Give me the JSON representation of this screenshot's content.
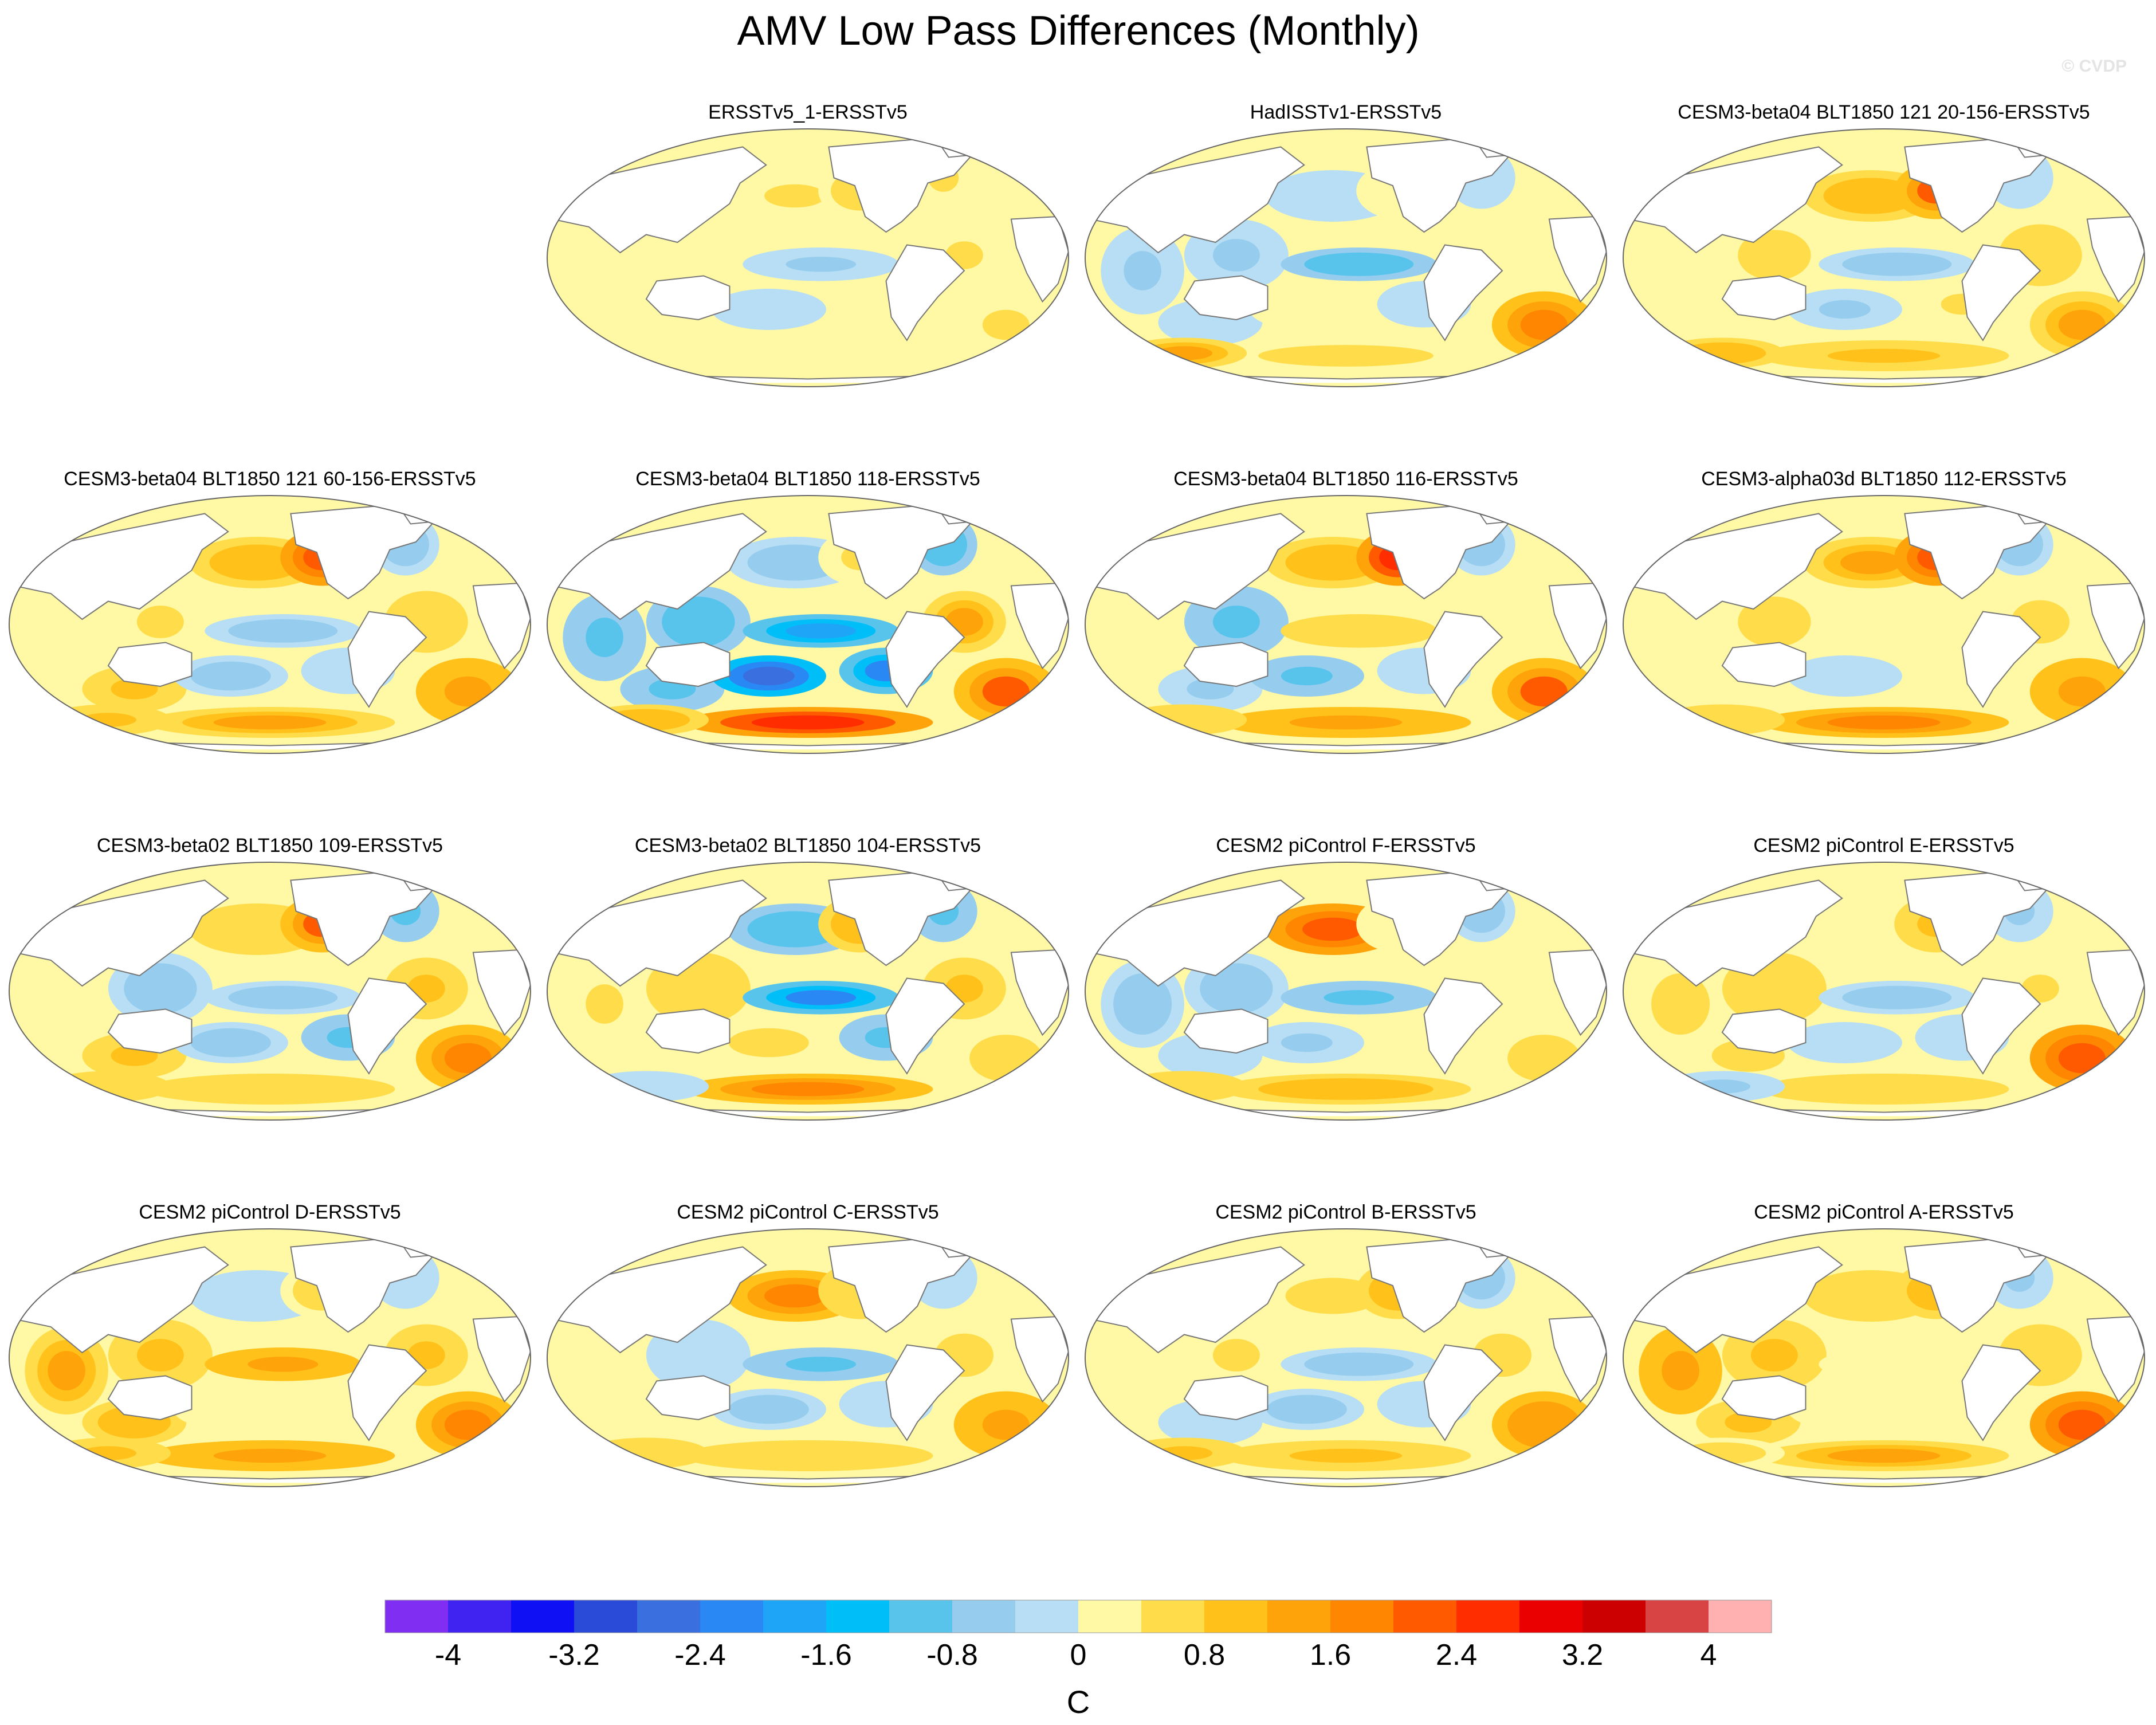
{
  "chart_data": {
    "type": "heatmap",
    "title": "AMV Low Pass Differences (Monthly)",
    "watermark": "© CVDP",
    "colorbar": {
      "label": "C",
      "tick_labels": [
        "-4",
        "-3.2",
        "-2.4",
        "-1.6",
        "-0.8",
        "0",
        "0.8",
        "1.6",
        "2.4",
        "3.2",
        "4"
      ],
      "levels": [
        -4,
        -3.6,
        -3.2,
        -2.8,
        -2.4,
        -2.0,
        -1.6,
        -1.2,
        -0.8,
        -0.4,
        0,
        0.4,
        0.8,
        1.2,
        1.6,
        2.0,
        2.4,
        2.8,
        3.2,
        3.6,
        4
      ],
      "colors": [
        "#7f2ef2",
        "#4023f0",
        "#1010f5",
        "#2a4ad8",
        "#3a6fe0",
        "#2a88f4",
        "#1fa5f8",
        "#00bff8",
        "#58c4ec",
        "#96cdee",
        "#b7def4",
        "#fff8a5",
        "#ffdd4a",
        "#ffc11a",
        "#ffa30a",
        "#ff8600",
        "#ff5a00",
        "#ff2d00",
        "#ea0000",
        "#cc0000",
        "#d84444",
        "#ffb0b0"
      ]
    },
    "panels": [
      {
        "title": "ERSSTv5_1-ERSSTv5",
        "pattern": [
          0.45,
          0.25,
          0.35,
          0.65,
          -0.45,
          0.5,
          0.4,
          0.55,
          0.2,
          0.45,
          0.1,
          -0.05,
          0.25
        ]
      },
      {
        "title": "HadISSTv1-ERSSTv5",
        "pattern": [
          -0.25,
          -0.55,
          -0.5,
          0.3,
          -1.2,
          0.4,
          0.6,
          1.8,
          -0.2,
          -0.3,
          -0.15,
          0.3,
          1.5
        ]
      },
      {
        "title": "CESM3-beta04 BLT1850 121 20-156-ERSSTv5",
        "pattern": [
          1.3,
          0.7,
          0.2,
          2.2,
          -0.6,
          0.8,
          0.9,
          1.4,
          0.5,
          -0.4,
          0.1,
          -0.5,
          1.2
        ]
      },
      {
        "title": "CESM3-beta04 BLT1850 121 60-156-ERSSTv5",
        "pattern": [
          1.3,
          0.5,
          0.4,
          2.5,
          -0.7,
          0.8,
          1.4,
          1.6,
          -0.3,
          -0.6,
          0.9,
          -0.6,
          0.9
        ]
      },
      {
        "title": "CESM3-beta04 BLT1850 118-ERSSTv5",
        "pattern": [
          -0.8,
          -1.2,
          -1.0,
          0.5,
          -1.8,
          1.5,
          2.8,
          2.2,
          -2.2,
          -1.2,
          -0.9,
          -2.8,
          1.2
        ]
      },
      {
        "title": "CESM3-beta04 BLT1850 116-ERSSTv5",
        "pattern": [
          1.2,
          -1.0,
          0.4,
          2.8,
          0.8,
          0.3,
          1.6,
          2.2,
          -0.3,
          -0.7,
          -0.5,
          -0.9,
          0.8
        ]
      },
      {
        "title": "CESM3-alpha03d BLT1850 112-ERSSTv5",
        "pattern": [
          1.4,
          0.6,
          0.3,
          2.6,
          0.3,
          0.6,
          2.0,
          1.6,
          0.4,
          -0.8,
          0.3,
          -0.4,
          0.8
        ]
      },
      {
        "title": "CESM3-beta02 BLT1850 109-ERSSTv5",
        "pattern": [
          0.8,
          -0.6,
          0.3,
          2.2,
          -0.8,
          0.9,
          0.8,
          2.0,
          -0.9,
          -1.0,
          0.9,
          -0.8,
          0.8
        ]
      },
      {
        "title": "CESM3-beta02 BLT1850 104-ERSSTv5",
        "pattern": [
          -1.2,
          0.8,
          0.5,
          1.2,
          -2.2,
          1.0,
          2.0,
          0.6,
          -1.0,
          -1.0,
          0.4,
          0.6,
          -0.4
        ]
      },
      {
        "title": "CESM2 piControl F-ERSSTv5",
        "pattern": [
          2.6,
          -0.8,
          -0.6,
          0.4,
          -0.9,
          0.3,
          1.2,
          0.7,
          0.3,
          -0.6,
          -0.2,
          -0.5,
          0.8
        ]
      },
      {
        "title": "CESM2 piControl E-ERSSTv5",
        "pattern": [
          0.4,
          0.8,
          0.7,
          1.0,
          -0.7,
          0.5,
          0.8,
          2.4,
          -0.3,
          -0.5,
          0.6,
          -0.3,
          -0.5
        ]
      },
      {
        "title": "CESM2 piControl D-ERSSTv5",
        "pattern": [
          -0.4,
          1.0,
          1.4,
          0.6,
          1.6,
          1.0,
          1.6,
          2.0,
          0.2,
          -0.4,
          1.2,
          0.2,
          1.0
        ]
      },
      {
        "title": "CESM2 piControl C-ERSSTv5",
        "pattern": [
          2.1,
          -0.3,
          0.3,
          0.8,
          -0.9,
          0.6,
          0.8,
          1.6,
          -0.2,
          -0.4,
          0.2,
          -0.6,
          0.8
        ]
      },
      {
        "title": "CESM2 piControl B-ERSSTv5",
        "pattern": [
          0.7,
          0.5,
          0.3,
          1.2,
          -0.8,
          0.7,
          0.9,
          1.7,
          -0.3,
          -0.6,
          -0.3,
          -0.8,
          0.9
        ]
      },
      {
        "title": "CESM2 piControl A-ERSSTv5",
        "pattern": [
          0.8,
          0.9,
          1.6,
          1.2,
          0.4,
          0.8,
          1.4,
          2.4,
          0.2,
          -0.5,
          0.9,
          0.3,
          0.6
        ]
      }
    ],
    "pattern_regions": [
      "north-pacific",
      "west-tropical-pacific",
      "indian-ocean",
      "northeast-pacific",
      "central-equatorial-pacific",
      "tropical-atlantic",
      "southern-ocean-pacific",
      "south-atlantic",
      "southeast-pacific",
      "north-atlantic",
      "australia-south-indian",
      "central-south-pacific",
      "southern-ocean-indian"
    ]
  }
}
